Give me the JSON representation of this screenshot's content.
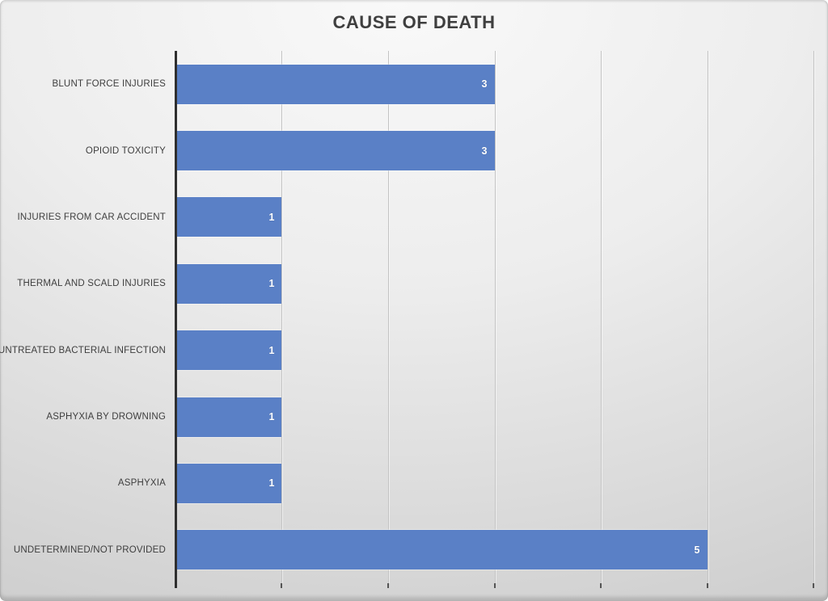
{
  "title": "CAUSE OF DEATH",
  "colors": {
    "bar": "#5a80c6",
    "bar_value_text": "#ffffff",
    "title_text": "#3f3f3f",
    "category_label_text": "#3e3e3e",
    "gridline": "#c3c3c3",
    "axis_line": "#2f2f2f",
    "tick": "#555555",
    "background_light": "#f9f9f9",
    "background_dark": "#c7c7c7"
  },
  "chart_data": {
    "type": "bar",
    "orientation": "horizontal",
    "title": "CAUSE OF DEATH",
    "categories": [
      "BLUNT FORCE INJURIES",
      "OPIOID TOXICITY",
      "INJURIES FROM CAR ACCIDENT",
      "THERMAL AND SCALD INJURIES",
      "UNTREATED BACTERIAL INFECTION",
      "ASPHYXIA BY DROWNING",
      "ASPHYXIA",
      "UNDETERMINED/NOT PROVIDED"
    ],
    "values": [
      3,
      3,
      1,
      1,
      1,
      1,
      1,
      5
    ],
    "data_labels": [
      3,
      3,
      1,
      1,
      1,
      1,
      1,
      5
    ],
    "xlabel": "",
    "ylabel": "",
    "xlim": [
      0,
      6
    ],
    "gridline_interval": 1,
    "grid": "vertical",
    "axis_tick_labels_visible": false,
    "legend": "none"
  }
}
